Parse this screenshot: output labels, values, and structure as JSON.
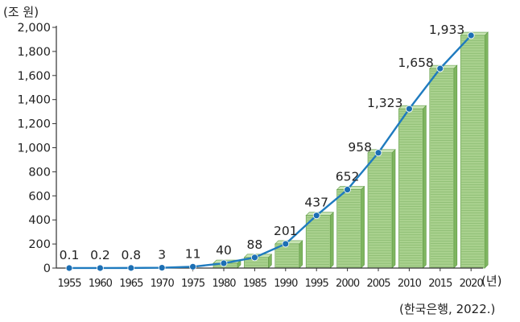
{
  "chart_data": {
    "type": "line",
    "y_unit_label": "(조 원)",
    "x_unit_label": "(년)",
    "source": "(한국은행, 2022.)",
    "categories": [
      "1955",
      "1960",
      "1965",
      "1970",
      "1975",
      "1980",
      "1985",
      "1990",
      "1995",
      "2000",
      "2005",
      "2010",
      "2015",
      "2020"
    ],
    "values": [
      0.1,
      0.2,
      0.8,
      3,
      11,
      40,
      88,
      201,
      437,
      652,
      958,
      1323,
      1658,
      1933
    ],
    "value_labels": [
      "0.1",
      "0.2",
      "0.8",
      "3",
      "11",
      "40",
      "88",
      "201",
      "437",
      "652",
      "958",
      "1,323",
      "1,658",
      "1,933"
    ],
    "ylim": [
      0,
      2000
    ],
    "y_ticks": [
      0,
      200,
      400,
      600,
      800,
      1000,
      1200,
      1400,
      1600,
      1800,
      2000
    ],
    "y_tick_labels": [
      "0",
      "200",
      "400",
      "600",
      "800",
      "1,000",
      "1,200",
      "1,400",
      "1,600",
      "1,800",
      "2,000"
    ],
    "grid": false,
    "decoration": "stacked banknote bundles under each data point",
    "colors": {
      "line": "#1f7bbf",
      "marker": "#1c6fb4",
      "bundle_face": "#a9d18e",
      "bundle_side": "#7fb560",
      "bundle_lines": "#5e9a45"
    }
  }
}
